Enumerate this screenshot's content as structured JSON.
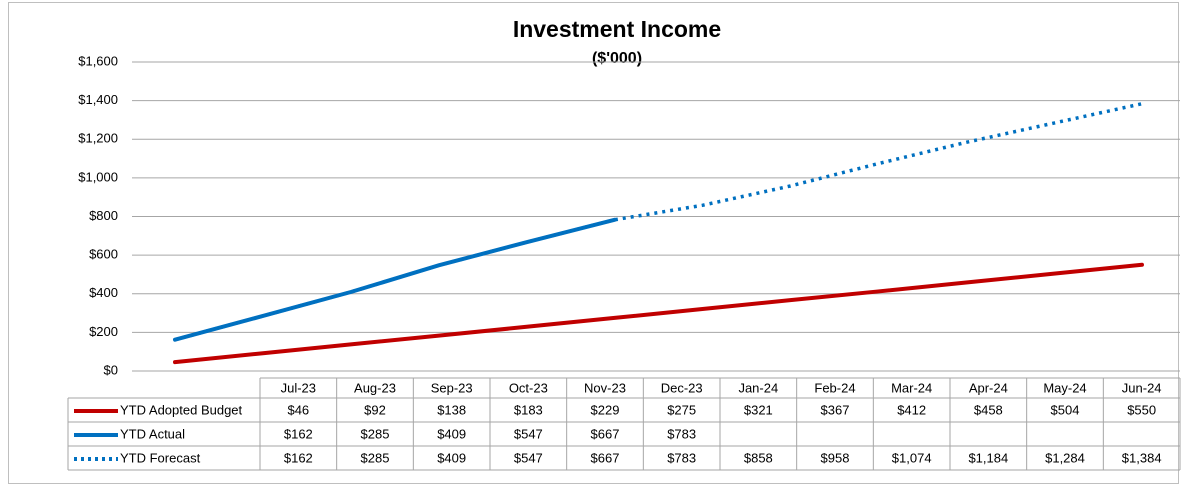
{
  "chart_data": {
    "type": "line",
    "title": "Investment Income",
    "subtitle": "($'000)",
    "categories": [
      "Jul-23",
      "Aug-23",
      "Sep-23",
      "Oct-23",
      "Nov-23",
      "Dec-23",
      "Jan-24",
      "Feb-24",
      "Mar-24",
      "Apr-24",
      "May-24",
      "Jun-24"
    ],
    "series": [
      {
        "name": "YTD Adopted Budget",
        "color": "#c00000",
        "dash": false,
        "values": [
          46,
          92,
          138,
          183,
          229,
          275,
          321,
          367,
          412,
          458,
          504,
          550
        ],
        "value_labels": [
          "$46",
          "$92",
          "$138",
          "$183",
          "$229",
          "$275",
          "$321",
          "$367",
          "$412",
          "$458",
          "$504",
          "$550"
        ]
      },
      {
        "name": "YTD Actual",
        "color": "#0070c0",
        "dash": false,
        "values": [
          162,
          285,
          409,
          547,
          667,
          783,
          null,
          null,
          null,
          null,
          null,
          null
        ],
        "value_labels": [
          "$162",
          "$285",
          "$409",
          "$547",
          "$667",
          "$783",
          null,
          null,
          null,
          null,
          null,
          null
        ]
      },
      {
        "name": "YTD Forecast",
        "color": "#0070c0",
        "dash": true,
        "values": [
          162,
          285,
          409,
          547,
          667,
          783,
          858,
          958,
          1074,
          1184,
          1284,
          1384
        ],
        "value_labels": [
          "$162",
          "$285",
          "$409",
          "$547",
          "$667",
          "$783",
          "$858",
          "$958",
          "$1,074",
          "$1,184",
          "$1,284",
          "$1,384"
        ]
      }
    ],
    "ylim": [
      0,
      1600
    ],
    "yticks": [
      {
        "value": 0,
        "label": "$0"
      },
      {
        "value": 200,
        "label": "$200"
      },
      {
        "value": 400,
        "label": "$400"
      },
      {
        "value": 600,
        "label": "$600"
      },
      {
        "value": 800,
        "label": "$800"
      },
      {
        "value": 1000,
        "label": "$1,000"
      },
      {
        "value": 1200,
        "label": "$1,200"
      },
      {
        "value": 1400,
        "label": "$1,400"
      },
      {
        "value": 1600,
        "label": "$1,600"
      }
    ],
    "grid": true
  }
}
